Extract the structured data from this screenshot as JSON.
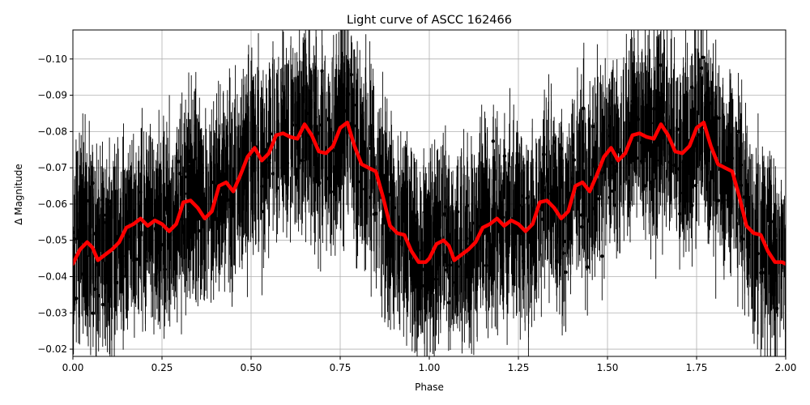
{
  "chart_data": {
    "type": "scatter",
    "title": "Light curve of ASCC 162466",
    "xlabel": "Phase",
    "ylabel": "Δ Magnitude",
    "xlim": [
      0.0,
      2.0
    ],
    "ylim": [
      -0.018,
      -0.108
    ],
    "y_axis_inverted": true,
    "grid": true,
    "xticks": [
      0.0,
      0.25,
      0.5,
      0.75,
      1.0,
      1.25,
      1.5,
      1.75,
      2.0
    ],
    "xtick_labels": [
      "0.00",
      "0.25",
      "0.50",
      "0.75",
      "1.00",
      "1.25",
      "1.50",
      "1.75",
      "2.00"
    ],
    "yticks": [
      -0.02,
      -0.03,
      -0.04,
      -0.05,
      -0.06,
      -0.07,
      -0.08,
      -0.09,
      -0.1
    ],
    "ytick_labels": [
      "−0.02",
      "−0.03",
      "−0.04",
      "−0.05",
      "−0.06",
      "−0.07",
      "−0.08",
      "−0.09",
      "−0.10"
    ],
    "series": [
      {
        "kind": "data-with-errorbars",
        "color": "#000000",
        "note_visible": "dense black points with vertical error bars, scatter roughly ±0.02 mag around the model curve"
      },
      {
        "kind": "binned-model",
        "color": "#ff0000",
        "x": [
          0.0,
          0.02,
          0.04,
          0.055,
          0.07,
          0.09,
          0.11,
          0.13,
          0.15,
          0.17,
          0.19,
          0.21,
          0.23,
          0.25,
          0.27,
          0.29,
          0.31,
          0.33,
          0.35,
          0.37,
          0.39,
          0.41,
          0.43,
          0.45,
          0.47,
          0.49,
          0.51,
          0.53,
          0.55,
          0.57,
          0.59,
          0.61,
          0.63,
          0.65,
          0.67,
          0.69,
          0.71,
          0.73,
          0.75,
          0.77,
          0.79,
          0.81,
          0.83,
          0.85,
          0.87,
          0.89,
          0.91,
          0.93,
          0.95,
          0.97,
          0.99,
          1.0,
          1.02,
          1.04,
          1.055,
          1.07,
          1.09,
          1.11,
          1.13,
          1.15,
          1.17,
          1.19,
          1.21,
          1.23,
          1.25,
          1.27,
          1.29,
          1.31,
          1.33,
          1.35,
          1.37,
          1.39,
          1.41,
          1.43,
          1.45,
          1.47,
          1.49,
          1.51,
          1.53,
          1.55,
          1.57,
          1.59,
          1.61,
          1.63,
          1.65,
          1.67,
          1.69,
          1.71,
          1.73,
          1.75,
          1.77,
          1.79,
          1.81,
          1.83,
          1.85,
          1.87,
          1.89,
          1.91,
          1.93,
          1.95,
          1.97,
          1.99,
          2.0
        ],
        "y": [
          -0.0435,
          -0.0475,
          -0.0495,
          -0.048,
          -0.0445,
          -0.046,
          -0.0475,
          -0.0495,
          -0.0535,
          -0.0545,
          -0.056,
          -0.054,
          -0.0555,
          -0.0545,
          -0.0525,
          -0.0545,
          -0.0605,
          -0.061,
          -0.059,
          -0.056,
          -0.058,
          -0.065,
          -0.066,
          -0.0635,
          -0.068,
          -0.073,
          -0.0755,
          -0.072,
          -0.074,
          -0.079,
          -0.0795,
          -0.0785,
          -0.078,
          -0.082,
          -0.079,
          -0.0745,
          -0.074,
          -0.076,
          -0.081,
          -0.0825,
          -0.076,
          -0.071,
          -0.07,
          -0.069,
          -0.062,
          -0.054,
          -0.052,
          -0.0515,
          -0.047,
          -0.044,
          -0.044,
          -0.045,
          -0.049,
          -0.05,
          -0.0485,
          -0.0445,
          -0.046,
          -0.0475,
          -0.0495,
          -0.0535,
          -0.0545,
          -0.056,
          -0.054,
          -0.0555,
          -0.0545,
          -0.0525,
          -0.0545,
          -0.0605,
          -0.061,
          -0.059,
          -0.056,
          -0.058,
          -0.065,
          -0.066,
          -0.0635,
          -0.068,
          -0.073,
          -0.0755,
          -0.072,
          -0.074,
          -0.079,
          -0.0795,
          -0.0785,
          -0.078,
          -0.082,
          -0.079,
          -0.0745,
          -0.074,
          -0.076,
          -0.081,
          -0.0825,
          -0.076,
          -0.071,
          -0.07,
          -0.069,
          -0.062,
          -0.054,
          -0.052,
          -0.0515,
          -0.047,
          -0.044,
          -0.044,
          -0.0435
        ]
      }
    ]
  }
}
